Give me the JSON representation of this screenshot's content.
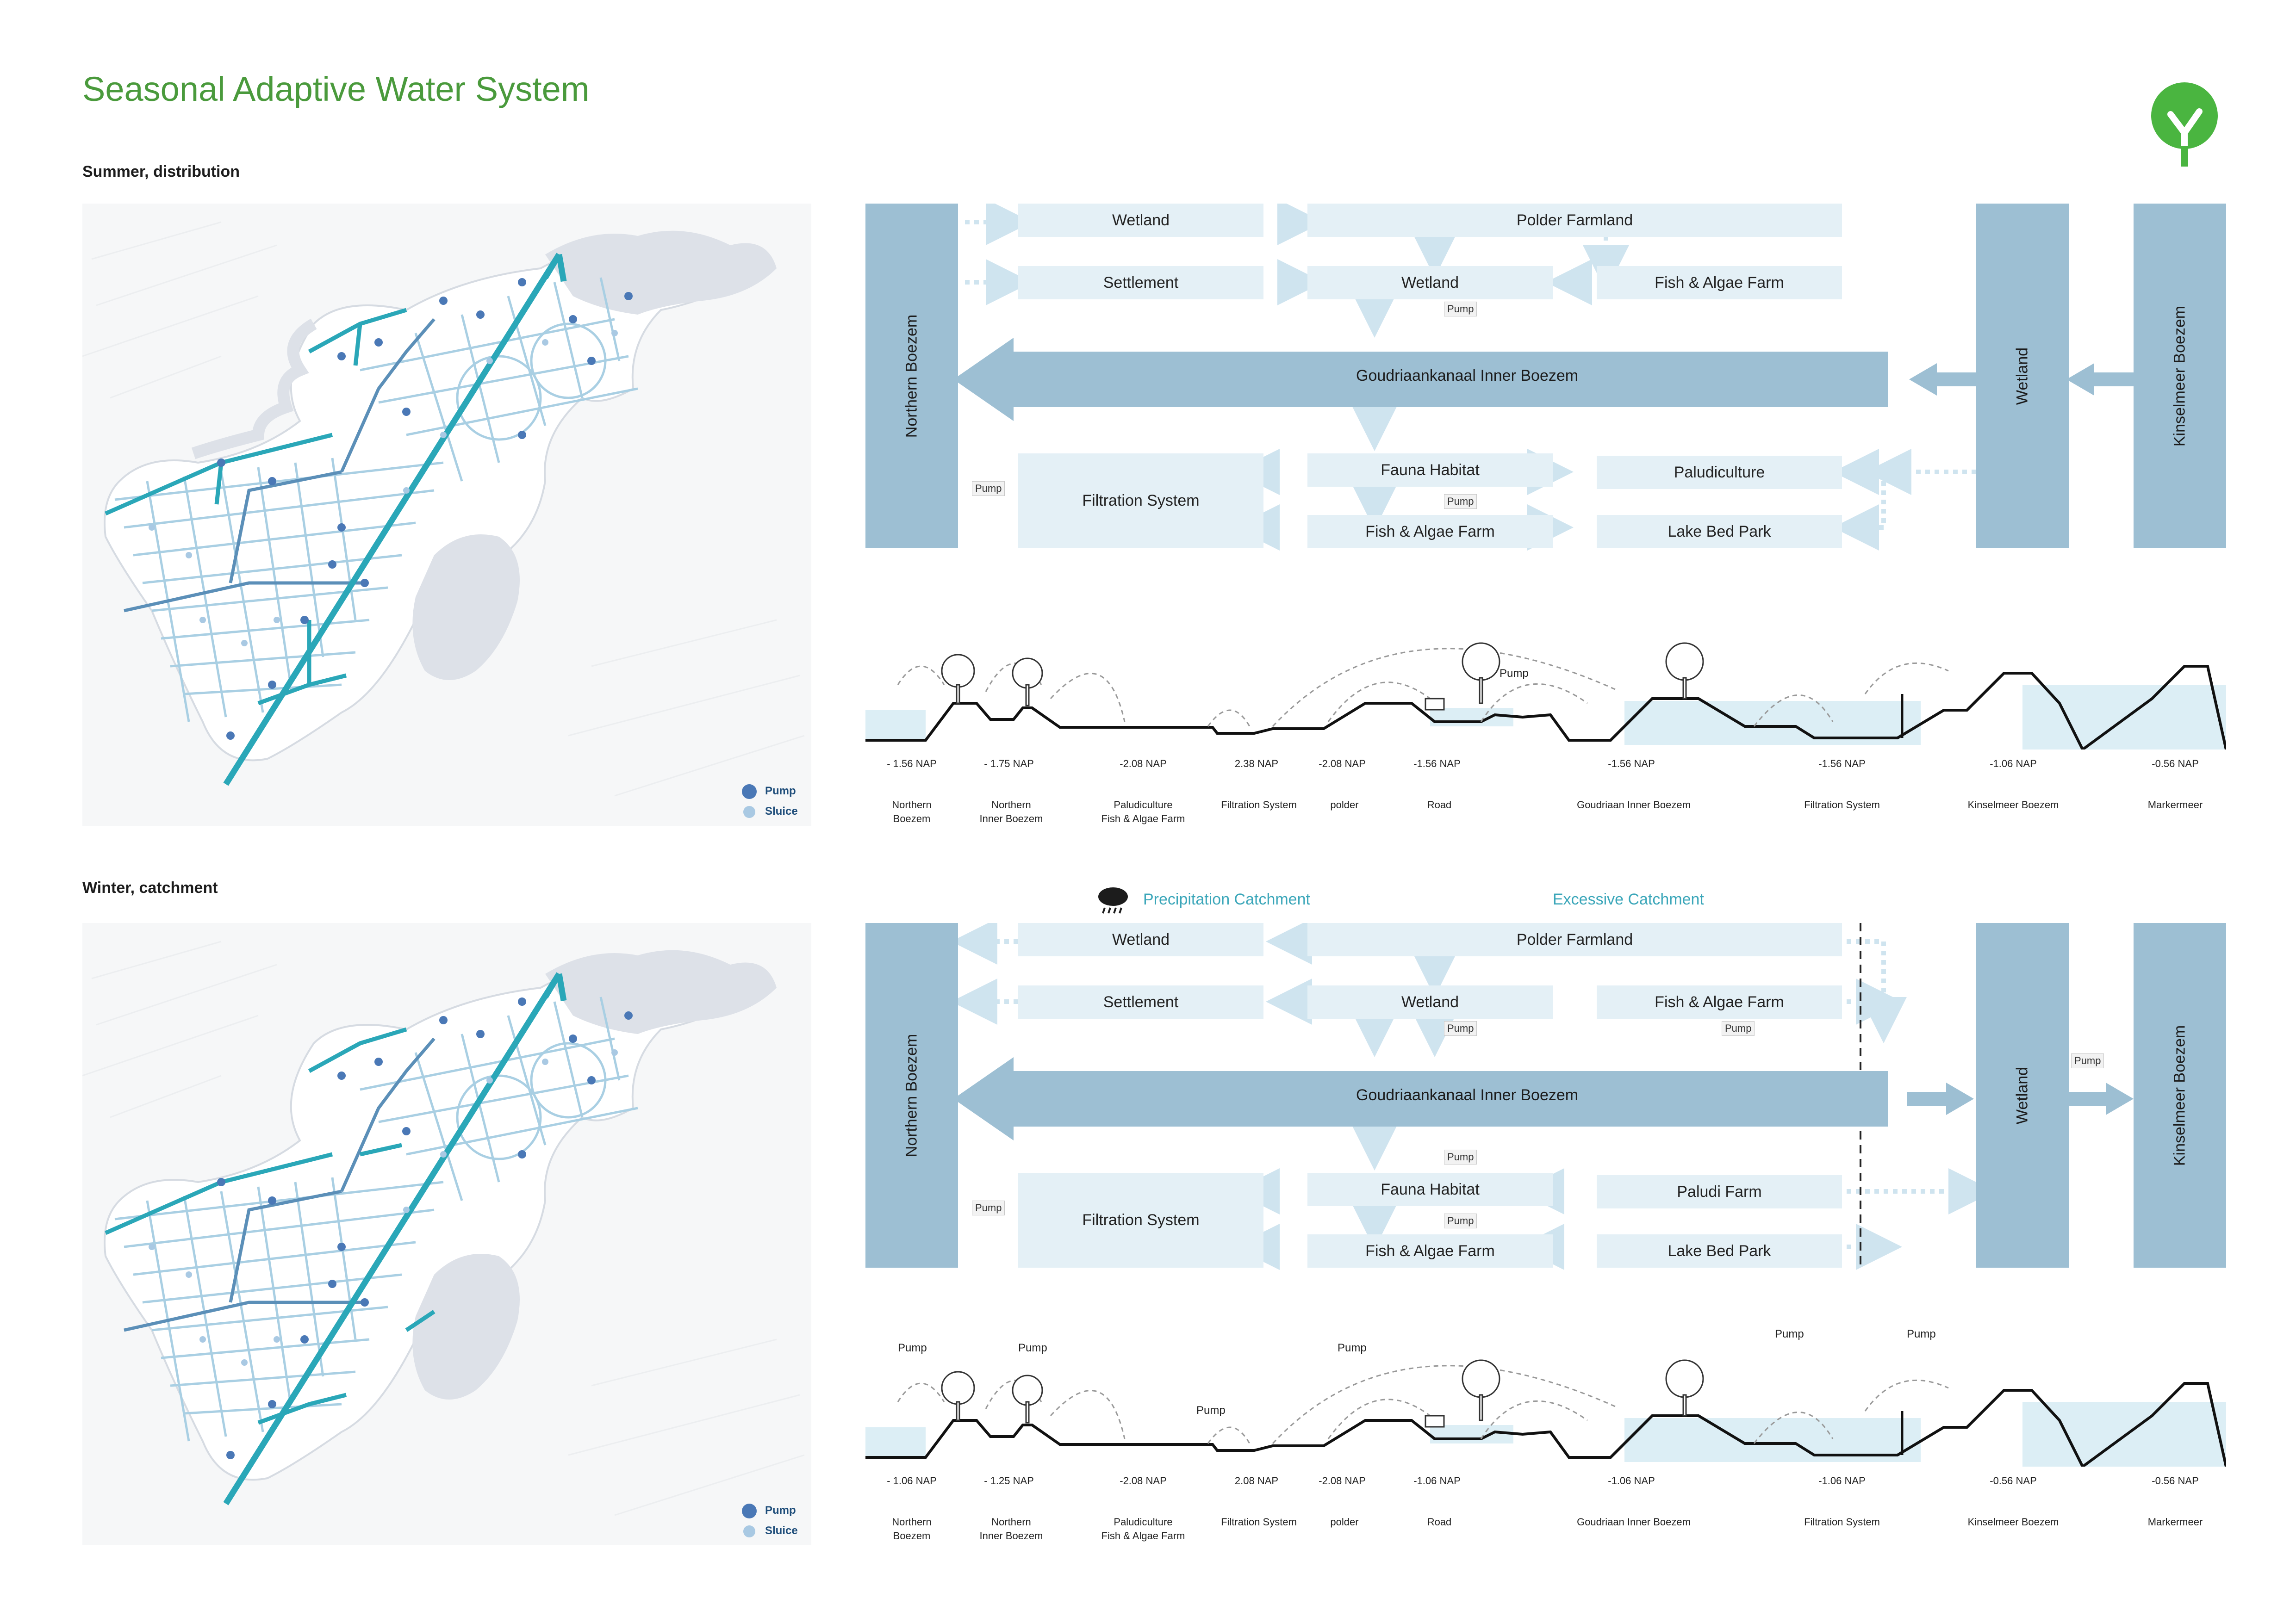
{
  "title": "Seasonal Adaptive Water System",
  "logo_icon": "tree-icon",
  "colors": {
    "title": "#4a9a3c",
    "logo": "#4ab540",
    "box": "#e4f0f6",
    "boezem": "#9dbfd3",
    "channel": "#2aa7b8",
    "pump": "#4a78b6",
    "sluice": "#a9c9e3"
  },
  "legend": {
    "pump": "Pump",
    "sluice": "Sluice"
  },
  "summer": {
    "heading": "Summer, distribution",
    "tall": {
      "northern": "Northern Boezem",
      "wetland": "Wetland",
      "kinselmeer": "Kinselmeer Boezem"
    },
    "main": "Goudriaankanaal Inner Boezem",
    "boxes": {
      "wetland_top": "Wetland",
      "polder": "Polder Farmland",
      "settlement": "Settlement",
      "wetland_mid": "Wetland",
      "fish_top": "Fish & Algae Farm",
      "filtration": "Filtration System",
      "fauna": "Fauna Habitat",
      "paludi": "Paludiculture",
      "fish_bottom": "Fish & Algae Farm",
      "lake": "Lake Bed Park"
    },
    "pumps": {
      "p1": "Pump",
      "p2": "Pump",
      "p3": "Pump"
    },
    "naps": [
      "- 1.56 NAP",
      "- 1.75 NAP",
      "-2.08 NAP",
      "2.38 NAP",
      "-2.08 NAP",
      "-1.56 NAP",
      "-1.56 NAP",
      "-1.56 NAP",
      "-1.06 NAP",
      "-0.56 NAP"
    ],
    "section_pump": "Pump"
  },
  "winter": {
    "heading": "Winter, catchment",
    "precip": "Precipitation Catchment",
    "excess": "Excessive Catchment",
    "tall": {
      "northern": "Northern Boezem",
      "wetland": "Wetland",
      "kinselmeer": "Kinselmeer Boezem"
    },
    "main": "Goudriaankanaal Inner Boezem",
    "boxes": {
      "wetland_top": "Wetland",
      "polder": "Polder Farmland",
      "settlement": "Settlement",
      "wetland_mid": "Wetland",
      "fish_top": "Fish & Algae Farm",
      "filtration": "Filtration System",
      "fauna": "Fauna Habitat",
      "paludi": "Paludi Farm",
      "fish_bottom": "Fish & Algae Farm",
      "lake": "Lake Bed Park"
    },
    "pumps": {
      "p1": "Pump",
      "p2": "Pump",
      "p3": "Pump",
      "p4": "Pump",
      "p5": "Pump",
      "p6": "Pump"
    },
    "naps": [
      "- 1.06 NAP",
      "- 1.25 NAP",
      "-2.08 NAP",
      "2.08 NAP",
      "-2.08 NAP",
      "-1.06 NAP",
      "-1.06 NAP",
      "-1.06 NAP",
      "-0.56 NAP",
      "-0.56 NAP"
    ],
    "section_pumps": [
      "Pump",
      "Pump",
      "Pump",
      "Pump",
      "Pump",
      "Pump"
    ]
  },
  "zones": [
    {
      "l1": "Northern",
      "l2": "Boezem"
    },
    {
      "l1": "Northern",
      "l2": "Inner Boezem"
    },
    {
      "l1": "Paludiculture",
      "l2": "Fish & Algae Farm"
    },
    {
      "l1": "Filtration System",
      "l2": ""
    },
    {
      "l1": "polder",
      "l2": ""
    },
    {
      "l1": "Road",
      "l2": ""
    },
    {
      "l1": "Goudriaan Inner Boezem",
      "l2": ""
    },
    {
      "l1": "Filtration System",
      "l2": ""
    },
    {
      "l1": "Kinselmeer Boezem",
      "l2": ""
    },
    {
      "l1": "Markermeer",
      "l2": ""
    }
  ]
}
